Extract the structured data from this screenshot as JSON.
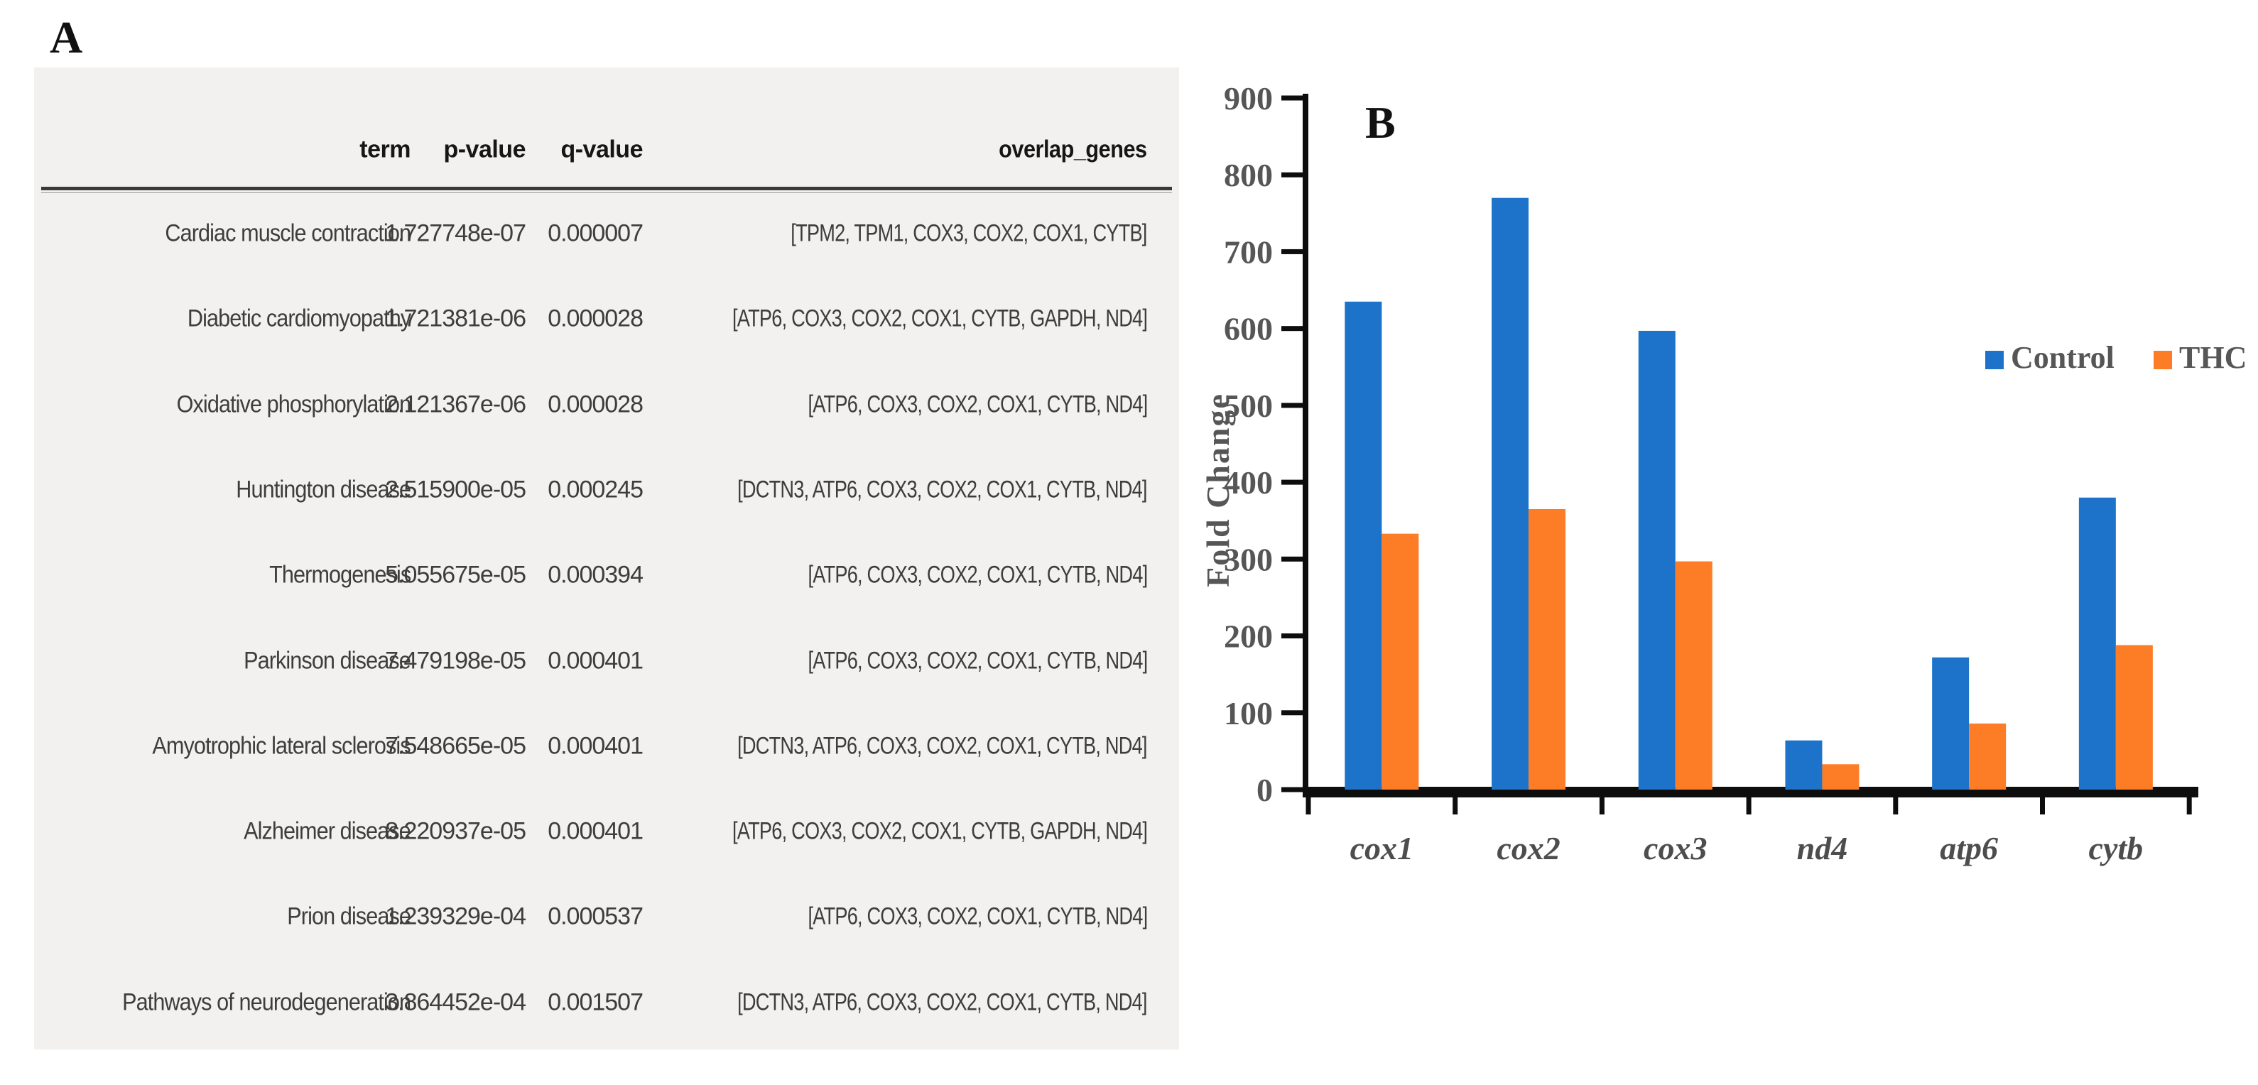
{
  "panels": {
    "a_label": "A",
    "b_label": "B"
  },
  "table": {
    "headers": [
      "term",
      "p-value",
      "q-value",
      "overlap_genes"
    ],
    "rows": [
      [
        "Cardiac muscle contraction",
        "1.727748e-07",
        "0.000007",
        "[TPM2, TPM1, COX3, COX2, COX1, CYTB]"
      ],
      [
        "Diabetic cardiomyopathy",
        "1.721381e-06",
        "0.000028",
        "[ATP6, COX3, COX2, COX1, CYTB, GAPDH, ND4]"
      ],
      [
        "Oxidative phosphorylation",
        "2.121367e-06",
        "0.000028",
        "[ATP6, COX3, COX2, COX1, CYTB, ND4]"
      ],
      [
        "Huntington disease",
        "2.515900e-05",
        "0.000245",
        "[DCTN3, ATP6, COX3, COX2, COX1, CYTB, ND4]"
      ],
      [
        "Thermogenesis",
        "5.055675e-05",
        "0.000394",
        "[ATP6, COX3, COX2, COX1, CYTB, ND4]"
      ],
      [
        "Parkinson disease",
        "7.479198e-05",
        "0.000401",
        "[ATP6, COX3, COX2, COX1, CYTB, ND4]"
      ],
      [
        "Amyotrophic lateral sclerosis",
        "7.548665e-05",
        "0.000401",
        "[DCTN3, ATP6, COX3, COX2, COX1, CYTB, ND4]"
      ],
      [
        "Alzheimer disease",
        "8.220937e-05",
        "0.000401",
        "[ATP6, COX3, COX2, COX1, CYTB, GAPDH, ND4]"
      ],
      [
        "Prion disease",
        "1.239329e-04",
        "0.000537",
        "[ATP6, COX3, COX2, COX1, CYTB, ND4]"
      ],
      [
        "Pathways of neurodegeneration",
        "3.864452e-04",
        "0.001507",
        "[DCTN3, ATP6, COX3, COX2, COX1, CYTB, ND4]"
      ]
    ]
  },
  "chart_data": {
    "type": "bar",
    "title": "",
    "xlabel": "",
    "ylabel": "Fold Change",
    "categories": [
      "cox1",
      "cox2",
      "cox3",
      "nd4",
      "atp6",
      "cytb"
    ],
    "series": [
      {
        "name": "Control",
        "color": "#1c73c9",
        "values": [
          635,
          770,
          597,
          64,
          172,
          380
        ]
      },
      {
        "name": "THC",
        "color": "#fd7d26",
        "values": [
          333,
          365,
          297,
          33,
          86,
          188
        ]
      }
    ],
    "ylim": [
      0,
      900
    ],
    "ytick_step": 100,
    "yticks": [
      0,
      100,
      200,
      300,
      400,
      500,
      600,
      700,
      800,
      900
    ],
    "grid": "off",
    "legend_position": "right-inside",
    "axis_color": "#0d0d0d",
    "text_color": "#565656"
  }
}
